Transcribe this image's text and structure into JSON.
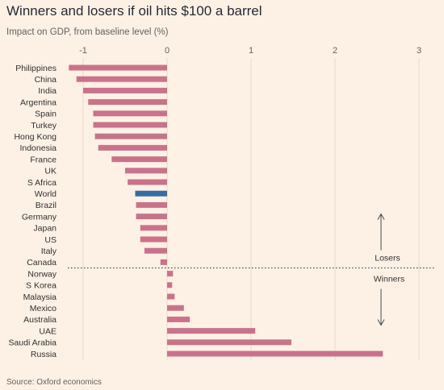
{
  "chart_data": {
    "type": "bar",
    "orientation": "horizontal",
    "title": "Winners and losers if oil hits $100 a barrel",
    "subtitle": "Impact on GDP, from baseline level (%)",
    "source": "Source: Oxford economics",
    "xlim": [
      -1.2,
      3.1
    ],
    "xticks": [
      -1,
      0,
      1,
      2,
      3
    ],
    "xtick_labels": [
      "-1",
      "0",
      "1",
      "2",
      "3"
    ],
    "grid": true,
    "categories": [
      "Philippines",
      "China",
      "India",
      "Argentina",
      "Spain",
      "Turkey",
      "Hong Kong",
      "Indonesia",
      "France",
      "UK",
      "S Africa",
      "World",
      "Brazil",
      "Germany",
      "Japan",
      "US",
      "Italy",
      "Canada",
      "Norway",
      "S Korea",
      "Malaysia",
      "Mexico",
      "Australia",
      "UAE",
      "Saudi Arabia",
      "Russia"
    ],
    "values": [
      -1.17,
      -1.08,
      -1.0,
      -0.94,
      -0.88,
      -0.88,
      -0.86,
      -0.82,
      -0.66,
      -0.5,
      -0.47,
      -0.38,
      -0.37,
      -0.37,
      -0.32,
      -0.32,
      -0.27,
      -0.08,
      0.07,
      0.06,
      0.09,
      0.2,
      0.27,
      1.05,
      1.48,
      2.57
    ],
    "highlight": "World",
    "colors": {
      "bar": "#c9738a",
      "highlight": "#346ea1",
      "grid": "#e6d9ce",
      "divider": "#4a4a4a"
    },
    "annotations": {
      "losers": "Losers",
      "winners": "Winners"
    }
  }
}
